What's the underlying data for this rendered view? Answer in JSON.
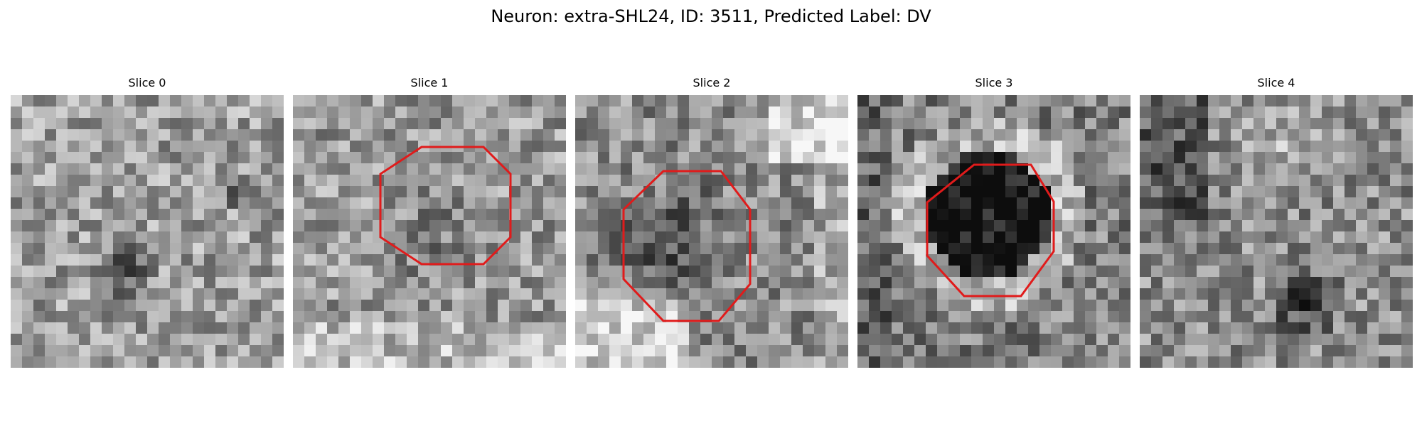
{
  "figure": {
    "title": "Neuron: extra-SHL24, ID: 3511, Predicted Label: DV"
  },
  "panels": [
    {
      "title": "Slice 0",
      "contour": false,
      "seed": 11,
      "brightness": 0.62,
      "texture": "noise-with-dark-blob-lower"
    },
    {
      "title": "Slice 1",
      "contour": true,
      "seed": 23,
      "brightness": 0.6,
      "texture": "noise-mid-gray"
    },
    {
      "title": "Slice 2",
      "contour": true,
      "seed": 37,
      "brightness": 0.55,
      "texture": "dark-ring-bright-corners"
    },
    {
      "title": "Slice 3",
      "contour": true,
      "seed": 41,
      "brightness": 0.5,
      "texture": "dark-center-bright-halo"
    },
    {
      "title": "Slice 4",
      "contour": false,
      "seed": 53,
      "brightness": 0.55,
      "texture": "mottled-gray"
    }
  ],
  "colors": {
    "contour": "#e01b1b",
    "background": "#ffffff"
  }
}
